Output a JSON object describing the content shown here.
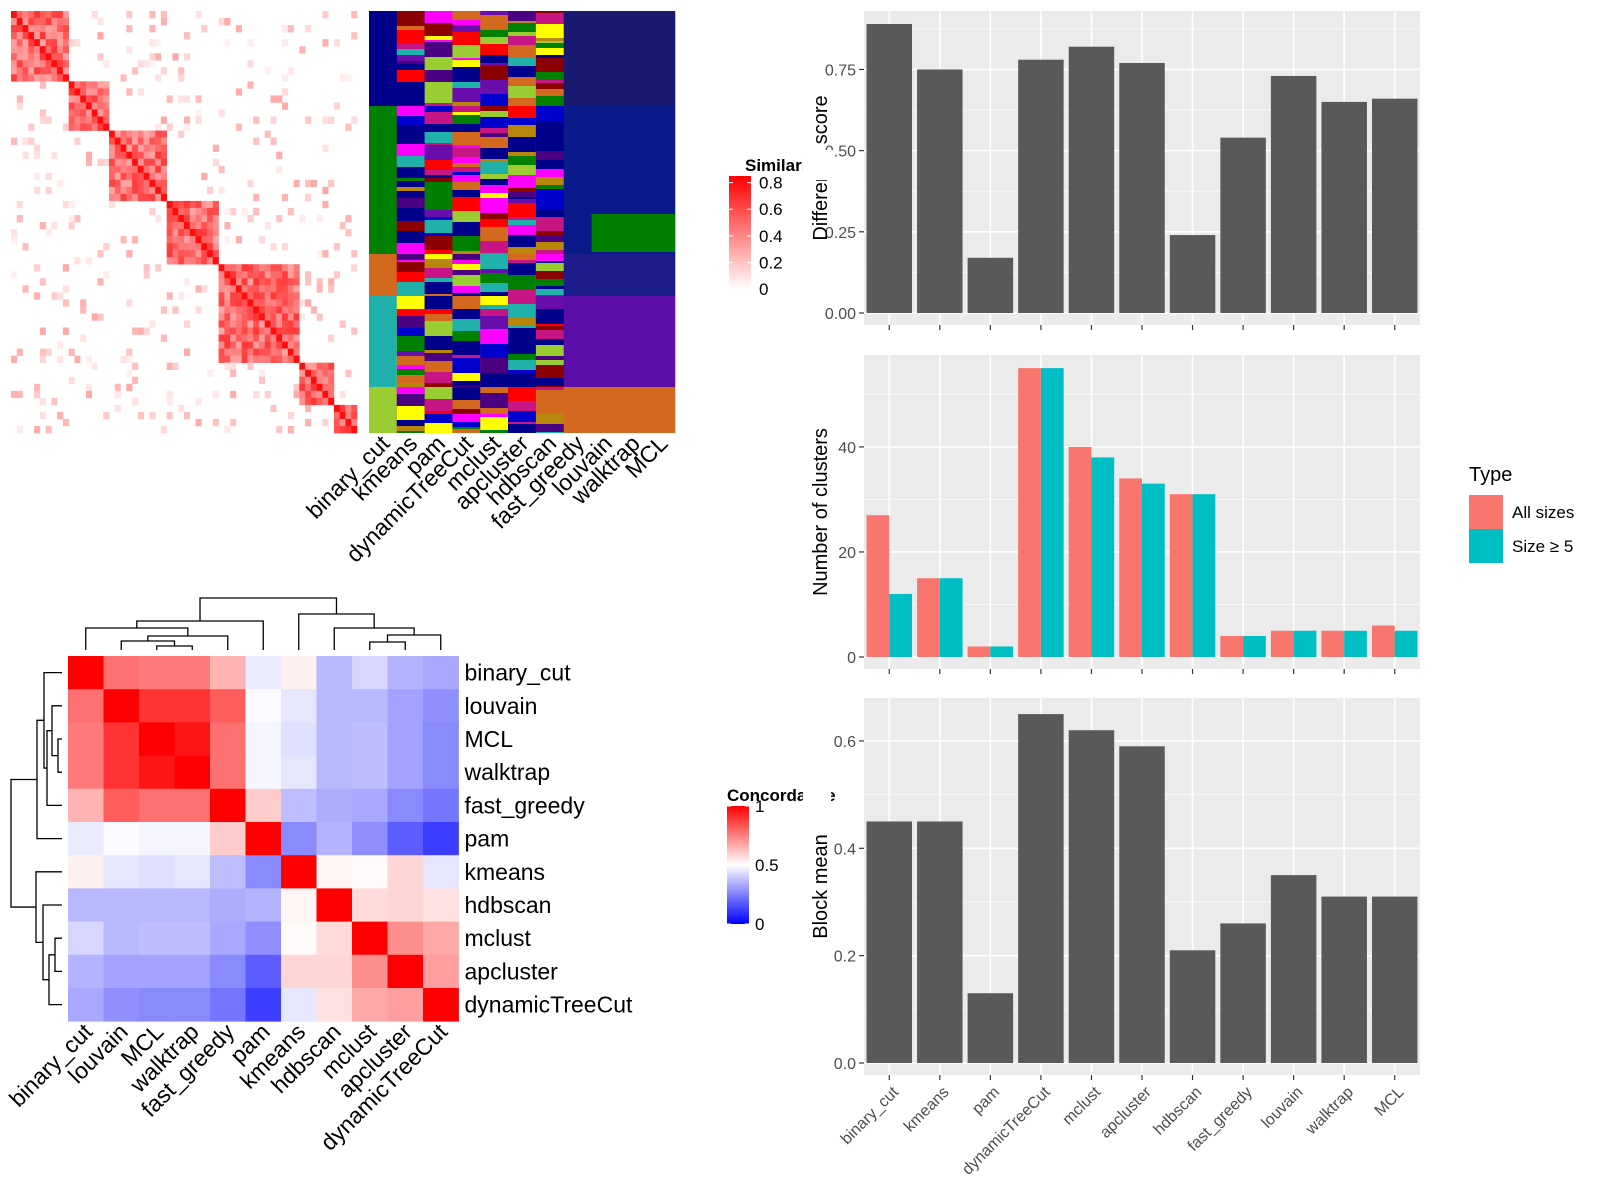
{
  "similarity_panel": {
    "legend_title": "Similarity",
    "legend_ticks": [
      "0.8",
      "0.6",
      "0.4",
      "0.2",
      "0"
    ],
    "legend_tick_values": [
      0.8,
      0.6,
      0.4,
      0.2,
      0
    ],
    "heatmap_colors": [
      "#ffffff",
      "#ff0000"
    ],
    "method_labels": [
      "binary_cut",
      "kmeans",
      "pam",
      "dynamicTreeCut",
      "mclust",
      "apcluster",
      "hdbscan",
      "fast_greedy",
      "louvain",
      "walktrap",
      "MCL"
    ],
    "palette": [
      "#00008b",
      "#0000cd",
      "#00008b",
      "#008000",
      "#ff00ff",
      "#6a0dad",
      "#d2691e",
      "#ff0000",
      "#b8860b",
      "#20b2aa",
      "#ffff00",
      "#8b0000",
      "#9acd32",
      "#c71585",
      "#4b0082"
    ]
  },
  "concordance_panel": {
    "legend_title": "Concordance",
    "legend_ticks": [
      "1",
      "0.5",
      "0"
    ],
    "legend_tick_values": [
      1,
      0.5,
      0
    ],
    "colors": [
      "#0000ff",
      "#ffffff",
      "#ff0000"
    ],
    "row_labels": [
      "binary_cut",
      "louvain",
      "MCL",
      "walktrap",
      "fast_greedy",
      "pam",
      "kmeans",
      "hdbscan",
      "mclust",
      "apcluster",
      "dynamicTreeCut"
    ],
    "col_labels": [
      "binary_cut",
      "louvain",
      "MCL",
      "walktrap",
      "fast_greedy",
      "pam",
      "kmeans",
      "hdbscan",
      "mclust",
      "apcluster",
      "dynamicTreeCut"
    ],
    "matrix": [
      [
        1.0,
        0.78,
        0.76,
        0.76,
        0.65,
        0.46,
        0.53,
        0.36,
        0.42,
        0.35,
        0.33
      ],
      [
        0.78,
        1.0,
        0.9,
        0.9,
        0.82,
        0.49,
        0.45,
        0.36,
        0.36,
        0.32,
        0.28
      ],
      [
        0.76,
        0.9,
        1.0,
        0.96,
        0.78,
        0.48,
        0.44,
        0.36,
        0.37,
        0.32,
        0.27
      ],
      [
        0.76,
        0.9,
        0.96,
        1.0,
        0.78,
        0.48,
        0.45,
        0.36,
        0.37,
        0.32,
        0.27
      ],
      [
        0.65,
        0.82,
        0.78,
        0.78,
        1.0,
        0.6,
        0.37,
        0.34,
        0.33,
        0.27,
        0.23
      ],
      [
        0.46,
        0.49,
        0.48,
        0.48,
        0.6,
        1.0,
        0.27,
        0.35,
        0.28,
        0.18,
        0.12
      ],
      [
        0.53,
        0.45,
        0.44,
        0.45,
        0.37,
        0.27,
        1.0,
        0.52,
        0.51,
        0.58,
        0.45
      ],
      [
        0.36,
        0.36,
        0.36,
        0.36,
        0.34,
        0.35,
        0.52,
        1.0,
        0.57,
        0.58,
        0.56
      ],
      [
        0.42,
        0.36,
        0.37,
        0.37,
        0.33,
        0.28,
        0.51,
        0.57,
        1.0,
        0.72,
        0.67
      ],
      [
        0.35,
        0.32,
        0.32,
        0.32,
        0.27,
        0.18,
        0.58,
        0.58,
        0.72,
        1.0,
        0.69
      ],
      [
        0.33,
        0.28,
        0.27,
        0.27,
        0.23,
        0.12,
        0.45,
        0.56,
        0.67,
        0.69,
        1.0
      ]
    ]
  },
  "bar_panels": {
    "categories": [
      "binary_cut",
      "kmeans",
      "pam",
      "dynamicTreeCut",
      "mclust",
      "apcluster",
      "hdbscan",
      "fast_greedy",
      "louvain",
      "walktrap",
      "MCL"
    ],
    "bar_color": "#595959",
    "panel_bg": "#ebebeb",
    "legend_title": "Type",
    "series_colors": [
      "#f8766d",
      "#00bfc4"
    ]
  },
  "chart_data": [
    {
      "type": "heatmap",
      "title": "",
      "legend_title": "Concordance",
      "rows": [
        "binary_cut",
        "louvain",
        "MCL",
        "walktrap",
        "fast_greedy",
        "pam",
        "kmeans",
        "hdbscan",
        "mclust",
        "apcluster",
        "dynamicTreeCut"
      ],
      "cols": [
        "binary_cut",
        "louvain",
        "MCL",
        "walktrap",
        "fast_greedy",
        "pam",
        "kmeans",
        "hdbscan",
        "mclust",
        "apcluster",
        "dynamicTreeCut"
      ],
      "value_range": [
        0,
        1
      ]
    },
    {
      "type": "bar",
      "categories": [
        "binary_cut",
        "kmeans",
        "pam",
        "dynamicTreeCut",
        "mclust",
        "apcluster",
        "hdbscan",
        "fast_greedy",
        "louvain",
        "walktrap",
        "MCL"
      ],
      "values": [
        0.89,
        0.75,
        0.17,
        0.78,
        0.82,
        0.77,
        0.24,
        0.54,
        0.73,
        0.65,
        0.66
      ],
      "ylabel": "Difference score",
      "ylim": [
        0,
        0.93
      ],
      "yticks": [
        "0.00",
        "0.25",
        "0.50",
        "0.75"
      ],
      "ytick_values": [
        0,
        0.25,
        0.5,
        0.75
      ],
      "grid": true
    },
    {
      "type": "bar",
      "categories": [
        "binary_cut",
        "kmeans",
        "pam",
        "dynamicTreeCut",
        "mclust",
        "apcluster",
        "hdbscan",
        "fast_greedy",
        "louvain",
        "walktrap",
        "MCL"
      ],
      "series": [
        {
          "name": "All sizes",
          "values": [
            27,
            15,
            2,
            55,
            40,
            34,
            31,
            4,
            5,
            5,
            6
          ]
        },
        {
          "name": "Size ≥ 5",
          "values": [
            12,
            15,
            2,
            55,
            38,
            33,
            31,
            4,
            5,
            5,
            5
          ]
        }
      ],
      "ylabel": "Number of clusters",
      "ylim": [
        0,
        57.5
      ],
      "yticks": [
        "0",
        "20",
        "40"
      ],
      "ytick_values": [
        0,
        20,
        40
      ],
      "legend": "right",
      "grid": true
    },
    {
      "type": "bar",
      "categories": [
        "binary_cut",
        "kmeans",
        "pam",
        "dynamicTreeCut",
        "mclust",
        "apcluster",
        "hdbscan",
        "fast_greedy",
        "louvain",
        "walktrap",
        "MCL"
      ],
      "values": [
        0.45,
        0.45,
        0.13,
        0.65,
        0.62,
        0.59,
        0.21,
        0.26,
        0.35,
        0.31,
        0.31
      ],
      "ylabel": "Block mean",
      "ylim": [
        0,
        0.68
      ],
      "yticks": [
        "0.0",
        "0.2",
        "0.4",
        "0.6"
      ],
      "ytick_values": [
        0,
        0.2,
        0.4,
        0.6
      ],
      "grid": true
    }
  ]
}
